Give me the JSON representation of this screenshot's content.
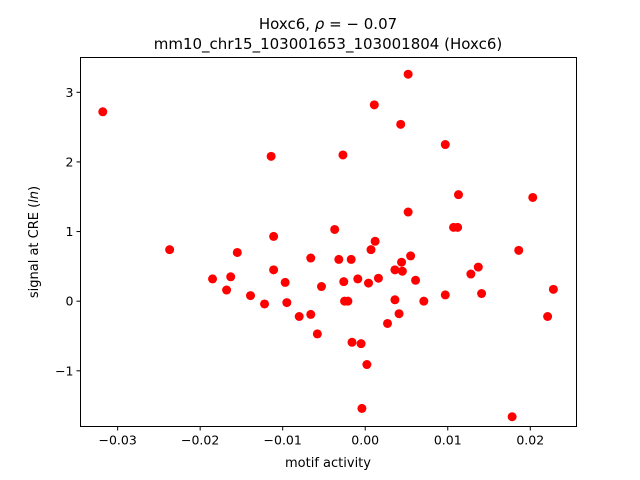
{
  "chart_data": {
    "type": "scatter",
    "title_line1_prefix": "Hoxc6, ",
    "title_line1_rho": "ρ",
    "title_line1_suffix": " = − 0.07",
    "title_line2": "mm10_chr15_103001653_103001804 (Hoxc6)",
    "xlabel": "motif activity",
    "ylabel_prefix": "signal at CRE (",
    "ylabel_italic": "ln",
    "ylabel_suffix": ")",
    "xlim": [
      -0.0345,
      0.0256
    ],
    "ylim": [
      -1.8,
      3.5
    ],
    "xticks": [
      {
        "value": -0.03,
        "label": "−0.03"
      },
      {
        "value": -0.02,
        "label": "−0.02"
      },
      {
        "value": -0.01,
        "label": "−0.01"
      },
      {
        "value": 0.0,
        "label": "0.00"
      },
      {
        "value": 0.01,
        "label": "0.01"
      },
      {
        "value": 0.02,
        "label": "0.02"
      }
    ],
    "yticks": [
      {
        "value": -1,
        "label": "−1"
      },
      {
        "value": 0,
        "label": "0"
      },
      {
        "value": 1,
        "label": "1"
      },
      {
        "value": 2,
        "label": "2"
      },
      {
        "value": 3,
        "label": "3"
      }
    ],
    "marker_color": "#ff0000",
    "grid": false,
    "points": [
      {
        "x": -0.0318,
        "y": 2.72
      },
      {
        "x": -0.0237,
        "y": 0.74
      },
      {
        "x": -0.0185,
        "y": 0.32
      },
      {
        "x": -0.0168,
        "y": 0.16
      },
      {
        "x": -0.0163,
        "y": 0.35
      },
      {
        "x": -0.0155,
        "y": 0.7
      },
      {
        "x": -0.0139,
        "y": 0.08
      },
      {
        "x": -0.0122,
        "y": -0.04
      },
      {
        "x": -0.0114,
        "y": 2.08
      },
      {
        "x": -0.0111,
        "y": 0.93
      },
      {
        "x": -0.0111,
        "y": 0.45
      },
      {
        "x": -0.0097,
        "y": 0.27
      },
      {
        "x": -0.0095,
        "y": -0.02
      },
      {
        "x": -0.008,
        "y": -0.22
      },
      {
        "x": -0.0066,
        "y": 0.62
      },
      {
        "x": -0.0066,
        "y": -0.19
      },
      {
        "x": -0.0058,
        "y": -0.47
      },
      {
        "x": -0.0053,
        "y": 0.21
      },
      {
        "x": -0.0037,
        "y": 1.03
      },
      {
        "x": -0.0032,
        "y": 0.6
      },
      {
        "x": -0.0027,
        "y": 2.1
      },
      {
        "x": -0.0026,
        "y": 0.28
      },
      {
        "x": -0.0025,
        "y": 0.0
      },
      {
        "x": -0.0021,
        "y": 0.0
      },
      {
        "x": -0.0017,
        "y": 0.6
      },
      {
        "x": -0.0016,
        "y": -0.59
      },
      {
        "x": -0.0009,
        "y": 0.32
      },
      {
        "x": -0.0005,
        "y": -0.61
      },
      {
        "x": -0.0004,
        "y": -1.54
      },
      {
        "x": 0.0002,
        "y": -0.91
      },
      {
        "x": 0.0004,
        "y": 0.26
      },
      {
        "x": 0.0007,
        "y": 0.74
      },
      {
        "x": 0.0011,
        "y": 2.82
      },
      {
        "x": 0.0012,
        "y": 0.86
      },
      {
        "x": 0.0016,
        "y": 0.33
      },
      {
        "x": 0.0027,
        "y": -0.32
      },
      {
        "x": 0.0036,
        "y": 0.45
      },
      {
        "x": 0.0036,
        "y": 0.02
      },
      {
        "x": 0.0041,
        "y": -0.18
      },
      {
        "x": 0.0043,
        "y": 2.54
      },
      {
        "x": 0.0044,
        "y": 0.56
      },
      {
        "x": 0.0045,
        "y": 0.43
      },
      {
        "x": 0.0052,
        "y": 3.26
      },
      {
        "x": 0.0052,
        "y": 1.28
      },
      {
        "x": 0.0055,
        "y": 0.65
      },
      {
        "x": 0.0061,
        "y": 0.3
      },
      {
        "x": 0.0071,
        "y": 0.0
      },
      {
        "x": 0.0097,
        "y": 2.25
      },
      {
        "x": 0.0097,
        "y": 0.09
      },
      {
        "x": 0.0107,
        "y": 1.06
      },
      {
        "x": 0.0112,
        "y": 1.06
      },
      {
        "x": 0.0113,
        "y": 1.53
      },
      {
        "x": 0.0128,
        "y": 0.39
      },
      {
        "x": 0.0137,
        "y": 0.49
      },
      {
        "x": 0.0141,
        "y": 0.11
      },
      {
        "x": 0.0178,
        "y": -1.66
      },
      {
        "x": 0.0186,
        "y": 0.73
      },
      {
        "x": 0.0203,
        "y": 1.49
      },
      {
        "x": 0.0221,
        "y": -0.22
      },
      {
        "x": 0.0228,
        "y": 0.17
      }
    ]
  }
}
